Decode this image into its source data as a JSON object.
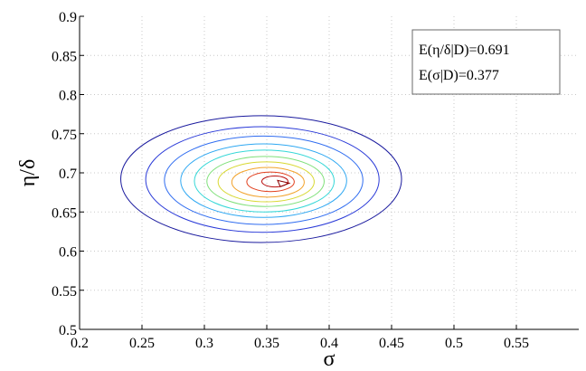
{
  "chart_data": {
    "type": "contour",
    "xlabel": "σ",
    "ylabel": "η/δ",
    "xlim": [
      0.2,
      0.6
    ],
    "ylim": [
      0.5,
      0.9
    ],
    "x_ticks": [
      0.2,
      0.25,
      0.3,
      0.35,
      0.4,
      0.45,
      0.5,
      0.55
    ],
    "x_tick_labels": [
      "0.2",
      "0.25",
      "0.3",
      "0.35",
      "0.4",
      "0.45",
      "0.5",
      "0.55"
    ],
    "y_ticks": [
      0.5,
      0.55,
      0.6,
      0.65,
      0.7,
      0.75,
      0.8,
      0.85,
      0.9
    ],
    "y_tick_labels": [
      "0.5",
      "0.55",
      "0.6",
      "0.65",
      "0.7",
      "0.75",
      "0.8",
      "0.85",
      "0.9"
    ],
    "grid": true,
    "legend_position": "top-right",
    "annotations": [
      "E(η/δ|D)=0.691",
      "E(σ|D)=0.377"
    ],
    "center": {
      "x": 0.363,
      "y": 0.688
    },
    "contours": [
      {
        "level": 1,
        "x_min": 0.233,
        "x_max": 0.458,
        "y_min": 0.611,
        "y_max": 0.773,
        "color": "#1a1a9e"
      },
      {
        "level": 2,
        "x_min": 0.253,
        "x_max": 0.44,
        "y_min": 0.624,
        "y_max": 0.759,
        "color": "#2a3ad8"
      },
      {
        "level": 3,
        "x_min": 0.268,
        "x_max": 0.427,
        "y_min": 0.634,
        "y_max": 0.747,
        "color": "#2f6cf0"
      },
      {
        "level": 4,
        "x_min": 0.281,
        "x_max": 0.414,
        "y_min": 0.643,
        "y_max": 0.737,
        "color": "#2fa8f2"
      },
      {
        "level": 5,
        "x_min": 0.292,
        "x_max": 0.404,
        "y_min": 0.65,
        "y_max": 0.729,
        "color": "#34d7d7"
      },
      {
        "level": 6,
        "x_min": 0.302,
        "x_max": 0.396,
        "y_min": 0.657,
        "y_max": 0.721,
        "color": "#7fe07a"
      },
      {
        "level": 7,
        "x_min": 0.311,
        "x_max": 0.388,
        "y_min": 0.663,
        "y_max": 0.714,
        "color": "#d8d832"
      },
      {
        "level": 8,
        "x_min": 0.322,
        "x_max": 0.38,
        "y_min": 0.669,
        "y_max": 0.707,
        "color": "#f2a22a"
      },
      {
        "level": 9,
        "x_min": 0.334,
        "x_max": 0.372,
        "y_min": 0.676,
        "y_max": 0.701,
        "color": "#e2401e"
      },
      {
        "level": 10,
        "x_min": 0.346,
        "x_max": 0.367,
        "y_min": 0.682,
        "y_max": 0.696,
        "color": "#b80f0f"
      }
    ]
  }
}
